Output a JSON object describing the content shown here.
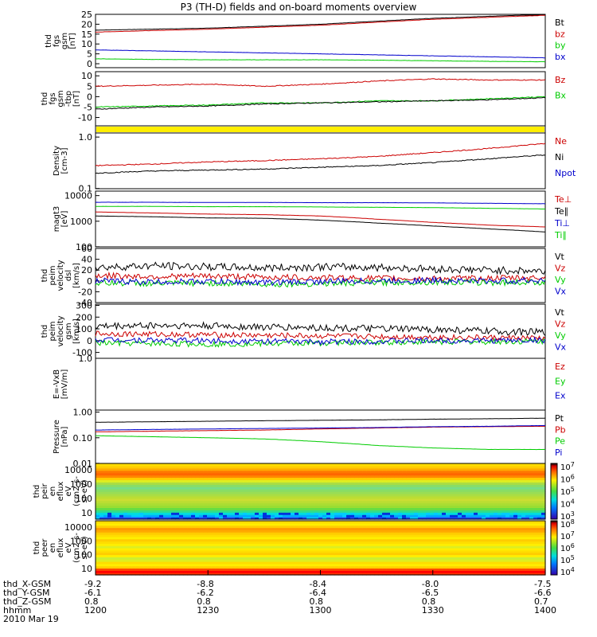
{
  "title": "P3 (TH-D) fields and on-board moments overview",
  "colors": {
    "black": "#000000",
    "red": "#cc0000",
    "green": "#00cc00",
    "blue": "#0000cc",
    "yellow": "#ffee00"
  },
  "chart_data": [
    {
      "type": "line",
      "id": "fgs_gsm",
      "ylabel": [
        "thd",
        "fgs",
        "gsm",
        "[nT]"
      ],
      "ylim": [
        -2,
        25
      ],
      "yticks": [
        25,
        20,
        15,
        10,
        5,
        0
      ],
      "series": [
        {
          "name": "Bt",
          "color": "#000000",
          "values": [
            17,
            17.5,
            18,
            19,
            20,
            21.5,
            23,
            24,
            25
          ]
        },
        {
          "name": "bz",
          "color": "#cc0000",
          "values": [
            16,
            16.8,
            17.5,
            18.5,
            19.5,
            21,
            22.5,
            23.5,
            24.5
          ]
        },
        {
          "name": "by",
          "color": "#00cc00",
          "values": [
            2.5,
            2.2,
            2,
            2,
            2,
            1.8,
            1.5,
            1.2,
            1
          ]
        },
        {
          "name": "bx",
          "color": "#0000cc",
          "values": [
            7,
            6.5,
            6,
            5.5,
            5,
            4.5,
            4,
            3.5,
            3
          ]
        }
      ]
    },
    {
      "type": "line",
      "id": "fgs_gse",
      "ylabel": [
        "thd",
        "fgs",
        "gsm",
        "-tbp",
        "[nT]"
      ],
      "ylim": [
        -14,
        12
      ],
      "yticks": [
        10,
        5,
        0,
        -5,
        -10
      ],
      "series": [
        {
          "name": "Bz",
          "color": "#cc0000",
          "values": [
            5,
            5.5,
            6,
            5,
            6,
            7.5,
            8.5,
            8,
            8
          ]
        },
        {
          "name": "Bx",
          "color": "#00cc00",
          "values": [
            -5,
            -4.5,
            -4,
            -3,
            -3,
            -2,
            -2,
            -1,
            0
          ]
        },
        {
          "name": "",
          "color": "#000000",
          "values": [
            -6,
            -5,
            -4.5,
            -3.5,
            -3,
            -2.5,
            -2,
            -1.5,
            -0.5
          ]
        }
      ]
    },
    {
      "type": "bar",
      "id": "flag",
      "ylabel": [],
      "color": "#ffee00"
    },
    {
      "type": "line",
      "id": "density",
      "ylabel": [
        "Density",
        "[cm-3]"
      ],
      "ylim": [
        0.1,
        1.2
      ],
      "yticks": [
        "1.0",
        "0.1"
      ],
      "scale": "log",
      "series": [
        {
          "name": "Ne",
          "color": "#cc0000",
          "values": [
            0.28,
            0.3,
            0.33,
            0.35,
            0.38,
            0.42,
            0.5,
            0.6,
            0.75
          ]
        },
        {
          "name": "Ni",
          "color": "#000000",
          "values": [
            0.2,
            0.22,
            0.23,
            0.24,
            0.26,
            0.28,
            0.32,
            0.38,
            0.45
          ]
        },
        {
          "name": "Npot",
          "color": "#0000cc",
          "values": []
        }
      ]
    },
    {
      "type": "line",
      "id": "temp",
      "ylabel": [
        "magt3",
        "[eV]"
      ],
      "ylim": [
        100,
        15000
      ],
      "yticks": [
        "10000",
        "1000",
        "100"
      ],
      "scale": "log",
      "series": [
        {
          "name": "Te⊥",
          "color": "#cc0000",
          "values": [
            2300,
            2100,
            1900,
            1800,
            1600,
            1200,
            900,
            700,
            600
          ]
        },
        {
          "name": "Te∥",
          "color": "#000000",
          "values": [
            1600,
            1500,
            1350,
            1300,
            1100,
            850,
            650,
            500,
            380
          ]
        },
        {
          "name": "Ti⊥",
          "color": "#0000cc",
          "values": [
            5500,
            5500,
            5400,
            5400,
            5300,
            5300,
            5200,
            5000,
            4800
          ]
        },
        {
          "name": "Ti∥",
          "color": "#00cc00",
          "values": [
            3800,
            3800,
            3700,
            3700,
            3600,
            3500,
            3400,
            3200,
            3000
          ]
        }
      ]
    },
    {
      "type": "line",
      "id": "peim_dsl",
      "ylabel": [
        "thd",
        "peim",
        "velocity",
        "dsl",
        "[km/s]"
      ],
      "ylim": [
        -40,
        60
      ],
      "yticks": [
        60,
        40,
        20,
        0,
        -20,
        -40
      ],
      "series": [
        {
          "name": "Vt",
          "color": "#000000",
          "values": [
            25,
            28,
            26,
            24,
            26,
            25,
            22,
            20,
            18
          ]
        },
        {
          "name": "Vz",
          "color": "#cc0000",
          "values": [
            10,
            8,
            9,
            7,
            6,
            5,
            4,
            5,
            6
          ]
        },
        {
          "name": "Vy",
          "color": "#00cc00",
          "values": [
            -3,
            -5,
            -4,
            -6,
            -5,
            -3,
            -2,
            -3,
            -2
          ]
        },
        {
          "name": "Vx",
          "color": "#0000cc",
          "values": [
            0,
            -2,
            -1,
            -3,
            -1,
            0,
            1,
            0,
            1
          ]
        }
      ]
    },
    {
      "type": "line",
      "id": "peim_gsm",
      "ylabel": [
        "thd",
        "peim",
        "velocity",
        "gsm",
        "[km/s]"
      ],
      "ylim": [
        -150,
        310
      ],
      "yticks": [
        300,
        200,
        100,
        0,
        -100
      ],
      "series": [
        {
          "name": "Vt",
          "color": "#000000",
          "values": [
            120,
            130,
            125,
            115,
            110,
            100,
            95,
            80,
            70
          ]
        },
        {
          "name": "Vz",
          "color": "#cc0000",
          "values": [
            60,
            55,
            50,
            45,
            40,
            35,
            30,
            25,
            20
          ]
        },
        {
          "name": "Vy",
          "color": "#00cc00",
          "values": [
            -20,
            -25,
            -30,
            -25,
            -20,
            -15,
            -10,
            -10,
            -5
          ]
        },
        {
          "name": "Vx",
          "color": "#0000cc",
          "values": [
            10,
            5,
            0,
            -5,
            -10,
            -5,
            0,
            0,
            5
          ]
        }
      ]
    },
    {
      "type": "line",
      "id": "efield",
      "ylabel": [
        "E=-VxB",
        "[mV/m]"
      ],
      "ylim": [
        -1,
        1
      ],
      "yticks": [
        "1.0"
      ],
      "series": [
        {
          "name": "Ez",
          "color": "#cc0000",
          "values": []
        },
        {
          "name": "Ey",
          "color": "#00cc00",
          "values": []
        },
        {
          "name": "Ex",
          "color": "#0000cc",
          "values": []
        }
      ]
    },
    {
      "type": "line",
      "id": "pressure",
      "ylabel": [
        "Pressure",
        "[nPa]"
      ],
      "ylim": [
        0.01,
        1.2
      ],
      "yticks": [
        "1.00",
        "0.10",
        "0.01"
      ],
      "scale": "log",
      "series": [
        {
          "name": "Pt",
          "color": "#000000",
          "values": [
            0.4,
            0.42,
            0.44,
            0.46,
            0.48,
            0.5,
            0.53,
            0.55,
            0.58
          ]
        },
        {
          "name": "Pb",
          "color": "#cc0000",
          "values": [
            0.17,
            0.18,
            0.19,
            0.2,
            0.22,
            0.24,
            0.26,
            0.27,
            0.28
          ]
        },
        {
          "name": "Pe",
          "color": "#00cc00",
          "values": [
            0.12,
            0.11,
            0.1,
            0.09,
            0.07,
            0.05,
            0.04,
            0.035,
            0.035
          ]
        },
        {
          "name": "Pi",
          "color": "#0000cc",
          "values": [
            0.2,
            0.21,
            0.22,
            0.23,
            0.24,
            0.25,
            0.27,
            0.28,
            0.3
          ]
        }
      ]
    },
    {
      "type": "heatmap",
      "id": "peir",
      "ylabel": [
        "thd",
        "peir",
        "en",
        "eflux",
        "eV",
        "(cm2-s-",
        "sr-eV)"
      ],
      "yticks": [
        "10000",
        "1000",
        "100",
        "10"
      ],
      "colorbar": [
        "10^7",
        "10^6",
        "10^5",
        "10^4",
        "10^3"
      ]
    },
    {
      "type": "heatmap",
      "id": "peer",
      "ylabel": [
        "thd",
        "peer",
        "en",
        "eflux",
        "eV",
        "(cm2-s-",
        "sr-eV)"
      ],
      "yticks": [
        "10000",
        "1000",
        "100",
        "10"
      ],
      "colorbar": [
        "10^8",
        "10^7",
        "10^6",
        "10^5",
        "10^4"
      ]
    }
  ],
  "footer": {
    "rows": [
      {
        "label": "thd_X-GSM",
        "values": [
          "-9.2",
          "-8.8",
          "-8.4",
          "-8.0",
          "-7.5"
        ]
      },
      {
        "label": "thd_Y-GSM",
        "values": [
          "-6.1",
          "-6.2",
          "-6.4",
          "-6.5",
          "-6.6"
        ]
      },
      {
        "label": "thd_Z-GSM",
        "values": [
          "0.8",
          "0.8",
          "0.8",
          "0.8",
          "0.7"
        ]
      },
      {
        "label": "hhmm",
        "values": [
          "1200",
          "1230",
          "1300",
          "1330",
          "1400"
        ]
      }
    ],
    "date": "2010 Mar 19"
  }
}
